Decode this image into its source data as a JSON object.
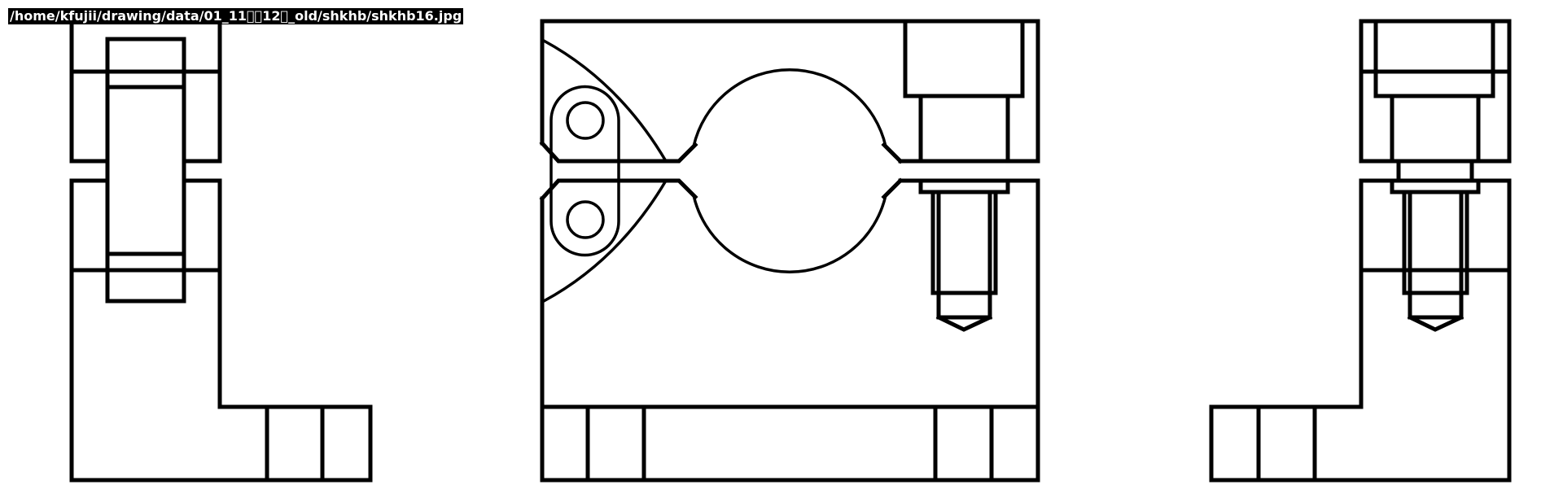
{
  "header": {
    "file_path": "/home/kfujii/drawing/data/01_11\u0000\u001212\u0000_old/shkhb/shkhb16.jpg"
  },
  "drawing": {
    "views": [
      "left-side-view",
      "front-view",
      "right-side-view"
    ],
    "line_color": "#000000",
    "background_color": "#ffffff"
  }
}
